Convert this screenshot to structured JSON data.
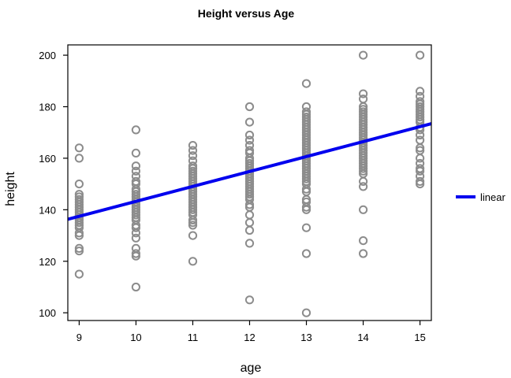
{
  "chart_data": {
    "type": "scatter",
    "title": "Height versus Age",
    "xlabel": "age",
    "ylabel": "height",
    "xlim": [
      8.8,
      15.2
    ],
    "ylim": [
      97,
      204
    ],
    "xticks": [
      9,
      10,
      11,
      12,
      13,
      14,
      15
    ],
    "yticks": [
      100,
      120,
      140,
      160,
      180,
      200
    ],
    "grid": false,
    "legend_position": "right",
    "colors": {
      "points": "#8c8c8c",
      "linear": "#0000ee"
    },
    "series": [
      {
        "type": "scatter",
        "points": [
          [
            9,
            164
          ],
          [
            9,
            160
          ],
          [
            9,
            150
          ],
          [
            9,
            146
          ],
          [
            9,
            145
          ],
          [
            9,
            144
          ],
          [
            9,
            143
          ],
          [
            9,
            142
          ],
          [
            9,
            141
          ],
          [
            9,
            140
          ],
          [
            9,
            139
          ],
          [
            9,
            138
          ],
          [
            9,
            137
          ],
          [
            9,
            136
          ],
          [
            9,
            135
          ],
          [
            9,
            134
          ],
          [
            9,
            133
          ],
          [
            9,
            131
          ],
          [
            9,
            130
          ],
          [
            9,
            125
          ],
          [
            9,
            124
          ],
          [
            9,
            115
          ],
          [
            10,
            171
          ],
          [
            10,
            162
          ],
          [
            10,
            157
          ],
          [
            10,
            155
          ],
          [
            10,
            153
          ],
          [
            10,
            151
          ],
          [
            10,
            150
          ],
          [
            10,
            148
          ],
          [
            10,
            147
          ],
          [
            10,
            146
          ],
          [
            10,
            145
          ],
          [
            10,
            144
          ],
          [
            10,
            143
          ],
          [
            10,
            142
          ],
          [
            10,
            141
          ],
          [
            10,
            140
          ],
          [
            10,
            139
          ],
          [
            10,
            138
          ],
          [
            10,
            137
          ],
          [
            10,
            136
          ],
          [
            10,
            134
          ],
          [
            10,
            133
          ],
          [
            10,
            131
          ],
          [
            10,
            129
          ],
          [
            10,
            125
          ],
          [
            10,
            123
          ],
          [
            10,
            122
          ],
          [
            10,
            110
          ],
          [
            11,
            165
          ],
          [
            11,
            163
          ],
          [
            11,
            161
          ],
          [
            11,
            159
          ],
          [
            11,
            157
          ],
          [
            11,
            156
          ],
          [
            11,
            155
          ],
          [
            11,
            154
          ],
          [
            11,
            153
          ],
          [
            11,
            152
          ],
          [
            11,
            151
          ],
          [
            11,
            150
          ],
          [
            11,
            149
          ],
          [
            11,
            148
          ],
          [
            11,
            147
          ],
          [
            11,
            146
          ],
          [
            11,
            145
          ],
          [
            11,
            144
          ],
          [
            11,
            143
          ],
          [
            11,
            142
          ],
          [
            11,
            141
          ],
          [
            11,
            140
          ],
          [
            11,
            139
          ],
          [
            11,
            138
          ],
          [
            11,
            136
          ],
          [
            11,
            135
          ],
          [
            11,
            134
          ],
          [
            11,
            130
          ],
          [
            11,
            120
          ],
          [
            12,
            180
          ],
          [
            12,
            174
          ],
          [
            12,
            169
          ],
          [
            12,
            167
          ],
          [
            12,
            165
          ],
          [
            12,
            163
          ],
          [
            12,
            162
          ],
          [
            12,
            160
          ],
          [
            12,
            159
          ],
          [
            12,
            158
          ],
          [
            12,
            157
          ],
          [
            12,
            156
          ],
          [
            12,
            155
          ],
          [
            12,
            154
          ],
          [
            12,
            153
          ],
          [
            12,
            152
          ],
          [
            12,
            151
          ],
          [
            12,
            150
          ],
          [
            12,
            149
          ],
          [
            12,
            148
          ],
          [
            12,
            147
          ],
          [
            12,
            146
          ],
          [
            12,
            145
          ],
          [
            12,
            144
          ],
          [
            12,
            142
          ],
          [
            12,
            141
          ],
          [
            12,
            138
          ],
          [
            12,
            135
          ],
          [
            12,
            132
          ],
          [
            12,
            127
          ],
          [
            12,
            105
          ],
          [
            13,
            189
          ],
          [
            13,
            180
          ],
          [
            13,
            178
          ],
          [
            13,
            177
          ],
          [
            13,
            176
          ],
          [
            13,
            175
          ],
          [
            13,
            174
          ],
          [
            13,
            173
          ],
          [
            13,
            172
          ],
          [
            13,
            171
          ],
          [
            13,
            170
          ],
          [
            13,
            169
          ],
          [
            13,
            168
          ],
          [
            13,
            167
          ],
          [
            13,
            166
          ],
          [
            13,
            165
          ],
          [
            13,
            164
          ],
          [
            13,
            163
          ],
          [
            13,
            162
          ],
          [
            13,
            161
          ],
          [
            13,
            160
          ],
          [
            13,
            159
          ],
          [
            13,
            158
          ],
          [
            13,
            157
          ],
          [
            13,
            156
          ],
          [
            13,
            155
          ],
          [
            13,
            154
          ],
          [
            13,
            153
          ],
          [
            13,
            152
          ],
          [
            13,
            151
          ],
          [
            13,
            150
          ],
          [
            13,
            148
          ],
          [
            13,
            147
          ],
          [
            13,
            144
          ],
          [
            13,
            143
          ],
          [
            13,
            141
          ],
          [
            13,
            140
          ],
          [
            13,
            133
          ],
          [
            13,
            123
          ],
          [
            13,
            100
          ],
          [
            14,
            200
          ],
          [
            14,
            185
          ],
          [
            14,
            183
          ],
          [
            14,
            180
          ],
          [
            14,
            179
          ],
          [
            14,
            178
          ],
          [
            14,
            177
          ],
          [
            14,
            176
          ],
          [
            14,
            175
          ],
          [
            14,
            174
          ],
          [
            14,
            173
          ],
          [
            14,
            172
          ],
          [
            14,
            171
          ],
          [
            14,
            170
          ],
          [
            14,
            169
          ],
          [
            14,
            168
          ],
          [
            14,
            167
          ],
          [
            14,
            166
          ],
          [
            14,
            165
          ],
          [
            14,
            164
          ],
          [
            14,
            163
          ],
          [
            14,
            162
          ],
          [
            14,
            161
          ],
          [
            14,
            160
          ],
          [
            14,
            159
          ],
          [
            14,
            158
          ],
          [
            14,
            157
          ],
          [
            14,
            156
          ],
          [
            14,
            155
          ],
          [
            14,
            154
          ],
          [
            14,
            151
          ],
          [
            14,
            149
          ],
          [
            14,
            140
          ],
          [
            14,
            128
          ],
          [
            14,
            123
          ],
          [
            15,
            200
          ],
          [
            15,
            186
          ],
          [
            15,
            184
          ],
          [
            15,
            182
          ],
          [
            15,
            181
          ],
          [
            15,
            180
          ],
          [
            15,
            179
          ],
          [
            15,
            178
          ],
          [
            15,
            177
          ],
          [
            15,
            176
          ],
          [
            15,
            175
          ],
          [
            15,
            174
          ],
          [
            15,
            172
          ],
          [
            15,
            171
          ],
          [
            15,
            169
          ],
          [
            15,
            167
          ],
          [
            15,
            164
          ],
          [
            15,
            163
          ],
          [
            15,
            160
          ],
          [
            15,
            158
          ],
          [
            15,
            156
          ],
          [
            15,
            155
          ],
          [
            15,
            153
          ],
          [
            15,
            151
          ],
          [
            15,
            150
          ]
        ]
      },
      {
        "name": "linear",
        "type": "line",
        "x": [
          8.8,
          15.2
        ],
        "y": [
          136.3,
          173.4
        ]
      }
    ]
  }
}
